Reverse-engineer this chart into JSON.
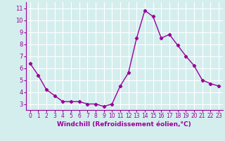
{
  "x": [
    0,
    1,
    2,
    3,
    4,
    5,
    6,
    7,
    8,
    9,
    10,
    11,
    12,
    13,
    14,
    15,
    16,
    17,
    18,
    19,
    20,
    21,
    22,
    23
  ],
  "y": [
    6.4,
    5.4,
    4.2,
    3.7,
    3.2,
    3.2,
    3.2,
    3.0,
    3.0,
    2.8,
    3.0,
    4.5,
    5.6,
    8.5,
    10.8,
    10.3,
    8.5,
    8.8,
    7.9,
    7.0,
    6.2,
    5.0,
    4.7,
    4.5
  ],
  "line_color": "#990099",
  "marker": "D",
  "marker_size": 2.2,
  "bg_color": "#d4eeee",
  "grid_color": "#ffffff",
  "xlabel": "Windchill (Refroidissement éolien,°C)",
  "xlabel_color": "#990099",
  "tick_color": "#990099",
  "ylim": [
    2.5,
    11.5
  ],
  "xlim": [
    -0.5,
    23.5
  ],
  "yticks": [
    3,
    4,
    5,
    6,
    7,
    8,
    9,
    10,
    11
  ],
  "xticks": [
    0,
    1,
    2,
    3,
    4,
    5,
    6,
    7,
    8,
    9,
    10,
    11,
    12,
    13,
    14,
    15,
    16,
    17,
    18,
    19,
    20,
    21,
    22,
    23
  ],
  "spine_color": "#990099",
  "linewidth": 1.0
}
